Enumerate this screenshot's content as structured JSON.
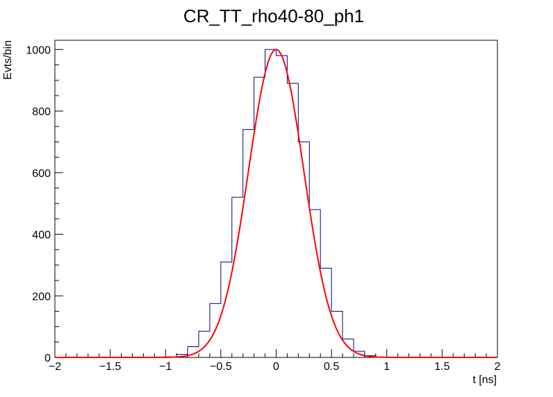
{
  "chart_data": {
    "type": "line",
    "title": "CR_TT_rho40-80_ph1",
    "xlabel": "t [ns]",
    "ylabel": "Evts/bin",
    "xlim": [
      -2,
      2
    ],
    "ylim": [
      0,
      1030
    ],
    "x_ticks": [
      -2,
      -1.5,
      -1,
      -0.5,
      0,
      0.5,
      1,
      1.5,
      2
    ],
    "x_tick_labels": [
      "−2",
      "−1.5",
      "−1",
      "−0.5",
      "0",
      "0.5",
      "1",
      "1.5",
      "2"
    ],
    "y_ticks": [
      0,
      200,
      400,
      600,
      800,
      1000
    ],
    "y_tick_labels": [
      "0",
      "200",
      "400",
      "600",
      "800",
      "1000"
    ],
    "grid": false,
    "legend": "none",
    "series": [
      {
        "kind": "histogram",
        "color": "#000080",
        "bin_edges": [
          -1.0,
          -0.9,
          -0.8,
          -0.7,
          -0.6,
          -0.5,
          -0.4,
          -0.3,
          -0.2,
          -0.1,
          0.0,
          0.1,
          0.2,
          0.3,
          0.4,
          0.5,
          0.6,
          0.7,
          0.8,
          0.9,
          1.0
        ],
        "values": [
          2,
          10,
          35,
          85,
          175,
          310,
          520,
          740,
          910,
          1000,
          980,
          890,
          700,
          480,
          290,
          150,
          60,
          20,
          6,
          1
        ]
      },
      {
        "kind": "fit",
        "color": "#ff0000",
        "model": "gaussian",
        "amplitude": 1000,
        "mean": 0.0,
        "sigma": 0.25
      }
    ]
  }
}
